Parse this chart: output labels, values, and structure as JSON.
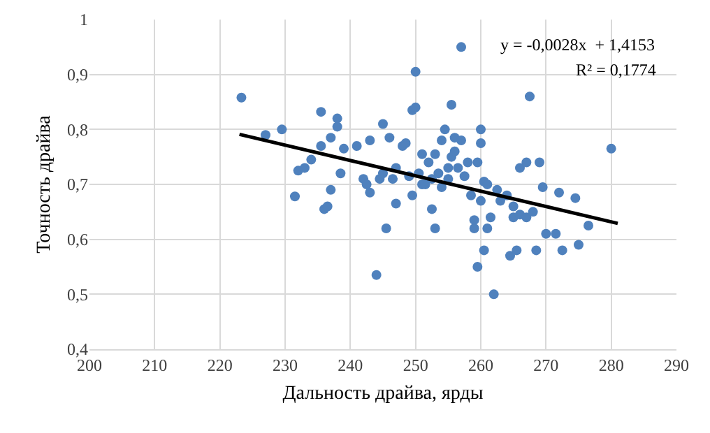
{
  "chart_data": {
    "type": "scatter",
    "xlabel": "Дальность драйва, ярды",
    "ylabel": "Точность драйва",
    "annotations": [
      "y = -0,0028x  + 1,4153",
      "R² = 0,1774"
    ],
    "xlim": [
      200,
      290
    ],
    "xticks": [
      200,
      210,
      220,
      230,
      240,
      250,
      260,
      270,
      280,
      290
    ],
    "ylim": [
      0.4,
      1
    ],
    "yticks": [
      {
        "value": 0.4,
        "label": "0,4"
      },
      {
        "value": 0.5,
        "label": "0,5"
      },
      {
        "value": 0.6,
        "label": "0,6"
      },
      {
        "value": 0.7,
        "label": "0,7"
      },
      {
        "value": 0.8,
        "label": "0,8"
      },
      {
        "value": 0.9,
        "label": "0,9"
      },
      {
        "value": 1,
        "label": "1"
      }
    ],
    "grid": true,
    "legend": false,
    "marker": "circle",
    "series": [
      {
        "color": "#4f81bd",
        "x": [
          223.3,
          227,
          229.5,
          231.5,
          232,
          233,
          234,
          235.5,
          235.5,
          236,
          236.5,
          237,
          237,
          238,
          238,
          238.5,
          239,
          241,
          242,
          242.5,
          243,
          243,
          244,
          244.5,
          245,
          245,
          245.5,
          246,
          246.5,
          247,
          247,
          248,
          248.5,
          249,
          249.5,
          249.5,
          250,
          250,
          250.5,
          251,
          251,
          251.5,
          252,
          252.5,
          252.5,
          253,
          253,
          253.5,
          254,
          254,
          254.5,
          255,
          255,
          255.5,
          255.5,
          256,
          256,
          256.5,
          257,
          257,
          257.5,
          258,
          258.5,
          259,
          259,
          259.5,
          259.5,
          260,
          260,
          260,
          260.5,
          260.5,
          261,
          261,
          261.5,
          262,
          262.5,
          263,
          264,
          264.5,
          265,
          265,
          265.5,
          266,
          266,
          267,
          267,
          267.5,
          268,
          268.5,
          269,
          269.5,
          270,
          271.5,
          272,
          272.5,
          274.5,
          275,
          276.5,
          280
        ],
        "values": [
          0.858,
          0.79,
          0.8,
          0.678,
          0.725,
          0.73,
          0.745,
          0.832,
          0.77,
          0.655,
          0.66,
          0.69,
          0.785,
          0.82,
          0.805,
          0.72,
          0.765,
          0.77,
          0.71,
          0.7,
          0.78,
          0.685,
          0.535,
          0.71,
          0.72,
          0.81,
          0.62,
          0.785,
          0.71,
          0.73,
          0.665,
          0.77,
          0.775,
          0.715,
          0.835,
          0.68,
          0.84,
          0.905,
          0.72,
          0.755,
          0.7,
          0.7,
          0.74,
          0.71,
          0.655,
          0.62,
          0.755,
          0.72,
          0.78,
          0.695,
          0.8,
          0.73,
          0.71,
          0.845,
          0.75,
          0.785,
          0.76,
          0.73,
          0.95,
          0.78,
          0.715,
          0.74,
          0.68,
          0.635,
          0.62,
          0.74,
          0.55,
          0.8,
          0.775,
          0.67,
          0.705,
          0.58,
          0.62,
          0.7,
          0.64,
          0.5,
          0.69,
          0.67,
          0.68,
          0.57,
          0.66,
          0.64,
          0.58,
          0.645,
          0.73,
          0.64,
          0.74,
          0.86,
          0.65,
          0.58,
          0.74,
          0.695,
          0.61,
          0.61,
          0.685,
          0.58,
          0.675,
          0.59,
          0.625,
          0.765
        ]
      },
      {
        "type": "line",
        "color": "#000000",
        "marker": "none",
        "x": [
          223,
          281
        ],
        "values": [
          0.791,
          0.629
        ]
      }
    ]
  }
}
